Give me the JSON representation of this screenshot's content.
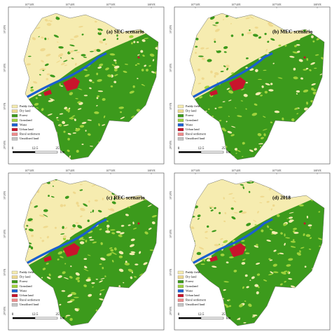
{
  "panels": [
    {
      "title": "(a) SEC scenario"
    },
    {
      "title": "(b) MEC scenario"
    },
    {
      "title": "(c) REC scenario"
    },
    {
      "title": "(d) 2018"
    }
  ],
  "legend": [
    {
      "label": "Paddy field",
      "color": "#f6ecb0"
    },
    {
      "label": "Dry land",
      "color": "#efd98e"
    },
    {
      "label": "Forest",
      "color": "#3c9a1c"
    },
    {
      "label": "Grassland",
      "color": "#9fd23c"
    },
    {
      "label": "Water",
      "color": "#1a5fd0"
    },
    {
      "label": "Urban land",
      "color": "#c8142c"
    },
    {
      "label": "Rural settlement",
      "color": "#f08a8a"
    },
    {
      "label": "Unutilized land",
      "color": "#c4c4c4"
    }
  ],
  "scale_bar": {
    "labels": [
      "0",
      "12.5",
      "25"
    ],
    "unit": "km"
  },
  "x_coords": [
    "107°30'E",
    "107°40'E",
    "107°50'E",
    "108°0'E"
  ],
  "y_coords": [
    "30°20'N",
    "30°10'N",
    "30°0'N",
    "29°50'N"
  ]
}
